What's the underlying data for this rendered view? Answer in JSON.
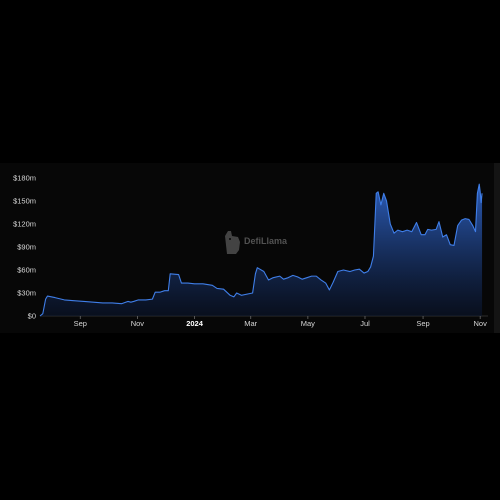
{
  "watermark": {
    "text": "DefiLlama",
    "icon": "llama-logo-icon"
  },
  "colors": {
    "background": "#000000",
    "panel": "#070707",
    "line": "#3f7ee8",
    "fill_top": "#2f63c6",
    "text": "#d6d6d6"
  },
  "chart_data": {
    "type": "area",
    "x_axis": {
      "type": "date",
      "range": [
        "2023-07-20",
        "2024-11-04"
      ],
      "ticks": [
        {
          "date": "2023-09-01",
          "label": "Sep",
          "bold": false
        },
        {
          "date": "2023-11-01",
          "label": "Nov",
          "bold": false
        },
        {
          "date": "2024-01-01",
          "label": "2024",
          "bold": true
        },
        {
          "date": "2024-03-01",
          "label": "Mar",
          "bold": false
        },
        {
          "date": "2024-05-01",
          "label": "May",
          "bold": false
        },
        {
          "date": "2024-07-01",
          "label": "Jul",
          "bold": false
        },
        {
          "date": "2024-09-01",
          "label": "Sep",
          "bold": false
        },
        {
          "date": "2024-11-01",
          "label": "Nov",
          "bold": false
        }
      ]
    },
    "y_axis": {
      "range": [
        0,
        180
      ],
      "unit": "millions USD",
      "ticks": [
        {
          "value": 0,
          "label": "$0"
        },
        {
          "value": 30,
          "label": "$30m"
        },
        {
          "value": 60,
          "label": "$60m"
        },
        {
          "value": 90,
          "label": "$90m"
        },
        {
          "value": 120,
          "label": "$120m"
        },
        {
          "value": 150,
          "label": "$150m"
        },
        {
          "value": 180,
          "label": "$180m"
        }
      ]
    },
    "grid": false,
    "legend": "none",
    "series": [
      {
        "x": [
          "2023-07-20",
          "2023-07-23",
          "2023-07-26",
          "2023-07-28",
          "2023-08-05",
          "2023-08-15",
          "2023-08-25",
          "2023-09-05",
          "2023-09-15",
          "2023-09-25",
          "2023-10-05",
          "2023-10-15",
          "2023-10-22",
          "2023-10-25",
          "2023-10-28",
          "2023-11-02",
          "2023-11-10",
          "2023-11-17",
          "2023-11-20",
          "2023-11-25",
          "2023-11-30",
          "2023-12-04",
          "2023-12-06",
          "2023-12-15",
          "2023-12-18",
          "2023-12-25",
          "2024-01-01",
          "2024-01-10",
          "2024-01-20",
          "2024-01-25",
          "2024-02-01",
          "2024-02-08",
          "2024-02-12",
          "2024-02-15",
          "2024-02-20",
          "2024-02-28",
          "2024-03-03",
          "2024-03-06",
          "2024-03-08",
          "2024-03-15",
          "2024-03-20",
          "2024-03-25",
          "2024-04-01",
          "2024-04-05",
          "2024-04-10",
          "2024-04-15",
          "2024-04-20",
          "2024-04-25",
          "2024-04-30",
          "2024-05-05",
          "2024-05-10",
          "2024-05-15",
          "2024-05-20",
          "2024-05-24",
          "2024-05-28",
          "2024-06-02",
          "2024-06-08",
          "2024-06-15",
          "2024-06-20",
          "2024-06-25",
          "2024-06-30",
          "2024-07-04",
          "2024-07-07",
          "2024-07-10",
          "2024-07-13",
          "2024-07-15",
          "2024-07-18",
          "2024-07-21",
          "2024-07-24",
          "2024-07-28",
          "2024-08-01",
          "2024-08-05",
          "2024-08-10",
          "2024-08-15",
          "2024-08-20",
          "2024-08-25",
          "2024-08-30",
          "2024-09-03",
          "2024-09-06",
          "2024-09-10",
          "2024-09-15",
          "2024-09-18",
          "2024-09-22",
          "2024-09-26",
          "2024-09-30",
          "2024-10-04",
          "2024-10-08",
          "2024-10-12",
          "2024-10-16",
          "2024-10-20",
          "2024-10-24",
          "2024-10-27",
          "2024-10-29",
          "2024-10-31",
          "2024-11-01",
          "2024-11-02",
          "2024-11-03"
        ],
        "values": [
          0,
          3,
          22,
          26,
          24,
          21,
          20,
          19,
          18,
          17,
          17,
          16,
          19,
          18,
          19,
          21,
          21,
          22,
          31,
          31,
          33,
          33,
          55,
          54,
          43,
          43,
          42,
          42,
          40,
          36,
          35,
          27,
          25,
          30,
          27,
          29,
          30,
          55,
          63,
          58,
          47,
          50,
          52,
          48,
          50,
          53,
          51,
          48,
          50,
          52,
          52,
          47,
          43,
          34,
          44,
          58,
          60,
          58,
          60,
          61,
          56,
          58,
          64,
          78,
          160,
          162,
          145,
          160,
          150,
          120,
          108,
          112,
          110,
          112,
          110,
          122,
          106,
          106,
          113,
          112,
          113,
          123,
          103,
          106,
          93,
          92,
          118,
          125,
          127,
          126,
          118,
          110,
          160,
          172,
          162,
          148,
          160
        ]
      }
    ]
  }
}
